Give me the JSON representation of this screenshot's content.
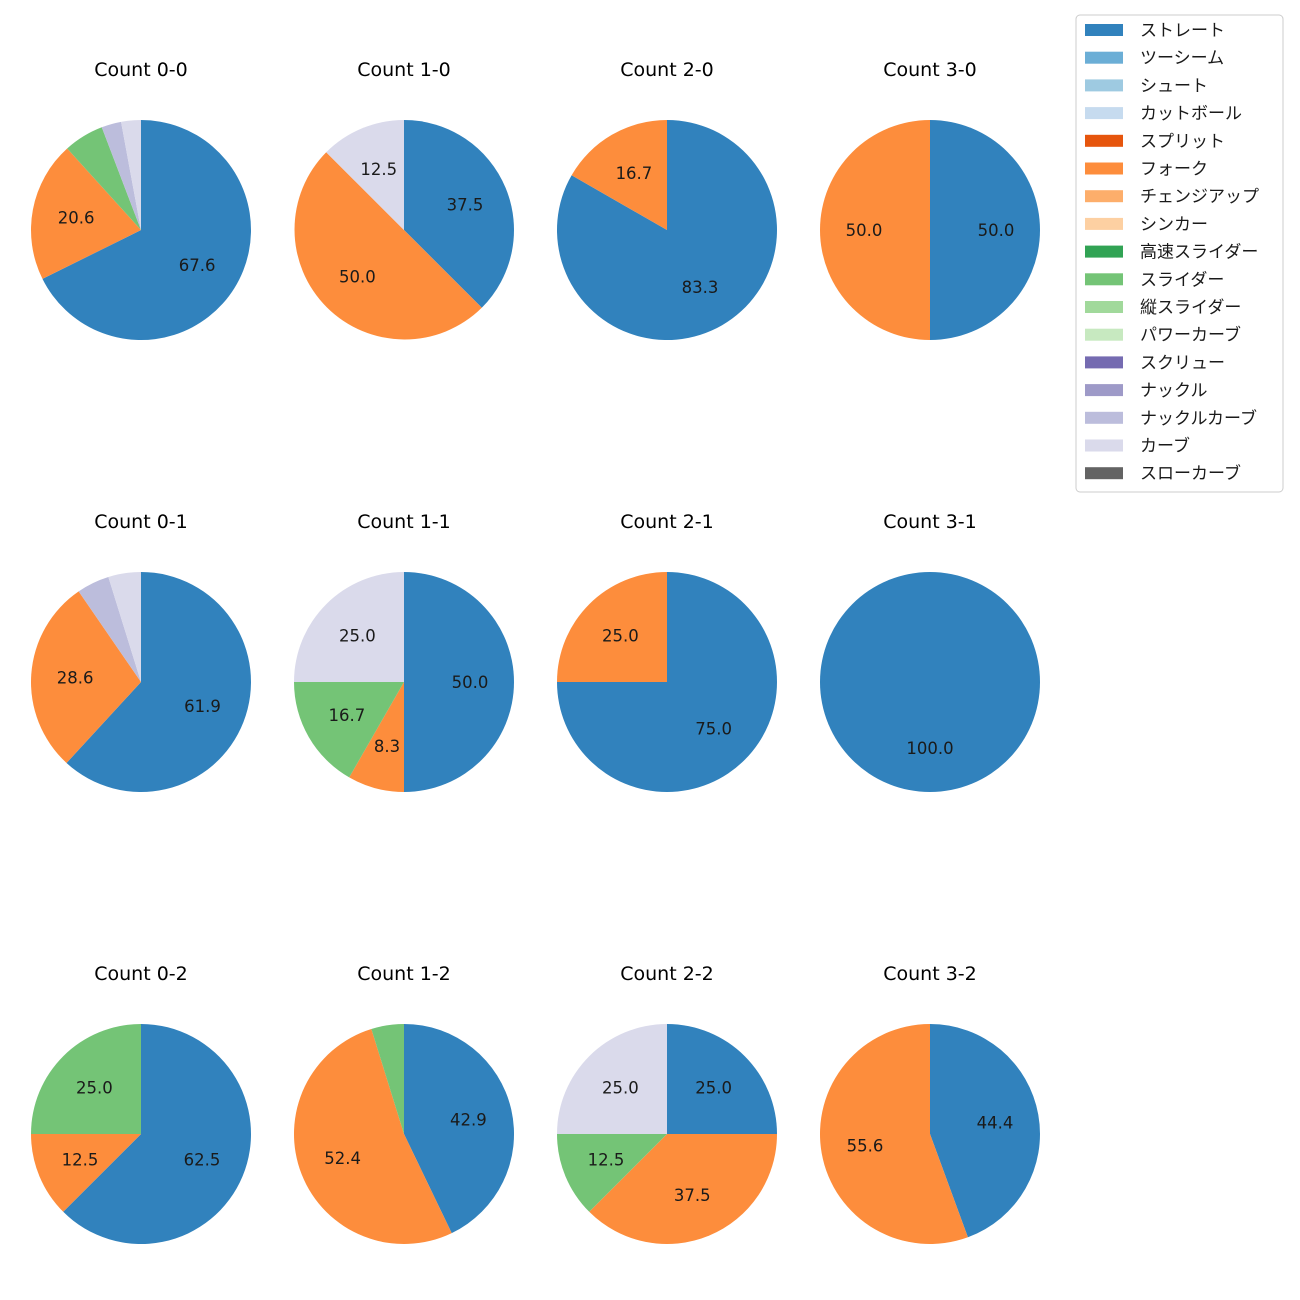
{
  "chart_data": {
    "type": "pie",
    "start": "top, clockwise",
    "legend_position": "top-right",
    "pitch_types": [
      {
        "name": "ストレート",
        "color": "#3182bd"
      },
      {
        "name": "ツーシーム",
        "color": "#6baed6"
      },
      {
        "name": "シュート",
        "color": "#9ecae1"
      },
      {
        "name": "カットボール",
        "color": "#c6dbef"
      },
      {
        "name": "スプリット",
        "color": "#e6550d"
      },
      {
        "name": "フォーク",
        "color": "#fd8d3c"
      },
      {
        "name": "チェンジアップ",
        "color": "#fdae6b"
      },
      {
        "name": "シンカー",
        "color": "#fdd0a2"
      },
      {
        "name": "高速スライダー",
        "color": "#31a354"
      },
      {
        "name": "スライダー",
        "color": "#74c476"
      },
      {
        "name": "縦スライダー",
        "color": "#a1d99b"
      },
      {
        "name": "パワーカーブ",
        "color": "#c7e9c0"
      },
      {
        "name": "スクリュー",
        "color": "#756bb1"
      },
      {
        "name": "ナックル",
        "color": "#9e9ac8"
      },
      {
        "name": "ナックルカーブ",
        "color": "#bcbddc"
      },
      {
        "name": "カーブ",
        "color": "#dadaeb"
      },
      {
        "name": "スローカーブ",
        "color": "#636363"
      }
    ],
    "charts": [
      {
        "title": "Count 0-0",
        "slices": [
          {
            "type": "ストレート",
            "value": 67.6,
            "label": "67.6"
          },
          {
            "type": "フォーク",
            "value": 20.6,
            "label": "20.6"
          },
          {
            "type": "スライダー",
            "value": 5.9,
            "label": ""
          },
          {
            "type": "ナックルカーブ",
            "value": 2.9,
            "label": ""
          },
          {
            "type": "カーブ",
            "value": 2.9,
            "label": ""
          }
        ]
      },
      {
        "title": "Count 1-0",
        "slices": [
          {
            "type": "ストレート",
            "value": 37.5,
            "label": "37.5"
          },
          {
            "type": "フォーク",
            "value": 50.0,
            "label": "50.0"
          },
          {
            "type": "カーブ",
            "value": 12.5,
            "label": "12.5"
          }
        ]
      },
      {
        "title": "Count 2-0",
        "slices": [
          {
            "type": "ストレート",
            "value": 83.3,
            "label": "83.3"
          },
          {
            "type": "フォーク",
            "value": 16.7,
            "label": "16.7"
          }
        ]
      },
      {
        "title": "Count 3-0",
        "slices": [
          {
            "type": "ストレート",
            "value": 50.0,
            "label": "50.0"
          },
          {
            "type": "フォーク",
            "value": 50.0,
            "label": "50.0"
          }
        ]
      },
      {
        "title": "Count 0-1",
        "slices": [
          {
            "type": "ストレート",
            "value": 61.9,
            "label": "61.9"
          },
          {
            "type": "フォーク",
            "value": 28.6,
            "label": "28.6"
          },
          {
            "type": "ナックルカーブ",
            "value": 4.8,
            "label": ""
          },
          {
            "type": "カーブ",
            "value": 4.8,
            "label": ""
          }
        ]
      },
      {
        "title": "Count 1-1",
        "slices": [
          {
            "type": "ストレート",
            "value": 50.0,
            "label": "50.0"
          },
          {
            "type": "フォーク",
            "value": 8.3,
            "label": "8.3"
          },
          {
            "type": "スライダー",
            "value": 16.7,
            "label": "16.7"
          },
          {
            "type": "カーブ",
            "value": 25.0,
            "label": "25.0"
          }
        ]
      },
      {
        "title": "Count 2-1",
        "slices": [
          {
            "type": "ストレート",
            "value": 75.0,
            "label": "75.0"
          },
          {
            "type": "フォーク",
            "value": 25.0,
            "label": "25.0"
          }
        ]
      },
      {
        "title": "Count 3-1",
        "slices": [
          {
            "type": "ストレート",
            "value": 100.0,
            "label": "100.0"
          }
        ]
      },
      {
        "title": "Count 0-2",
        "slices": [
          {
            "type": "ストレート",
            "value": 62.5,
            "label": "62.5"
          },
          {
            "type": "フォーク",
            "value": 12.5,
            "label": "12.5"
          },
          {
            "type": "スライダー",
            "value": 25.0,
            "label": "25.0"
          }
        ]
      },
      {
        "title": "Count 1-2",
        "slices": [
          {
            "type": "ストレート",
            "value": 42.9,
            "label": "42.9"
          },
          {
            "type": "フォーク",
            "value": 52.4,
            "label": "52.4"
          },
          {
            "type": "スライダー",
            "value": 4.8,
            "label": ""
          }
        ]
      },
      {
        "title": "Count 2-2",
        "slices": [
          {
            "type": "ストレート",
            "value": 25.0,
            "label": "25.0"
          },
          {
            "type": "フォーク",
            "value": 37.5,
            "label": "37.5"
          },
          {
            "type": "スライダー",
            "value": 12.5,
            "label": "12.5"
          },
          {
            "type": "カーブ",
            "value": 25.0,
            "label": "25.0"
          }
        ]
      },
      {
        "title": "Count 3-2",
        "slices": [
          {
            "type": "ストレート",
            "value": 44.4,
            "label": "44.4"
          },
          {
            "type": "フォーク",
            "value": 55.6,
            "label": "55.6"
          }
        ]
      }
    ]
  }
}
